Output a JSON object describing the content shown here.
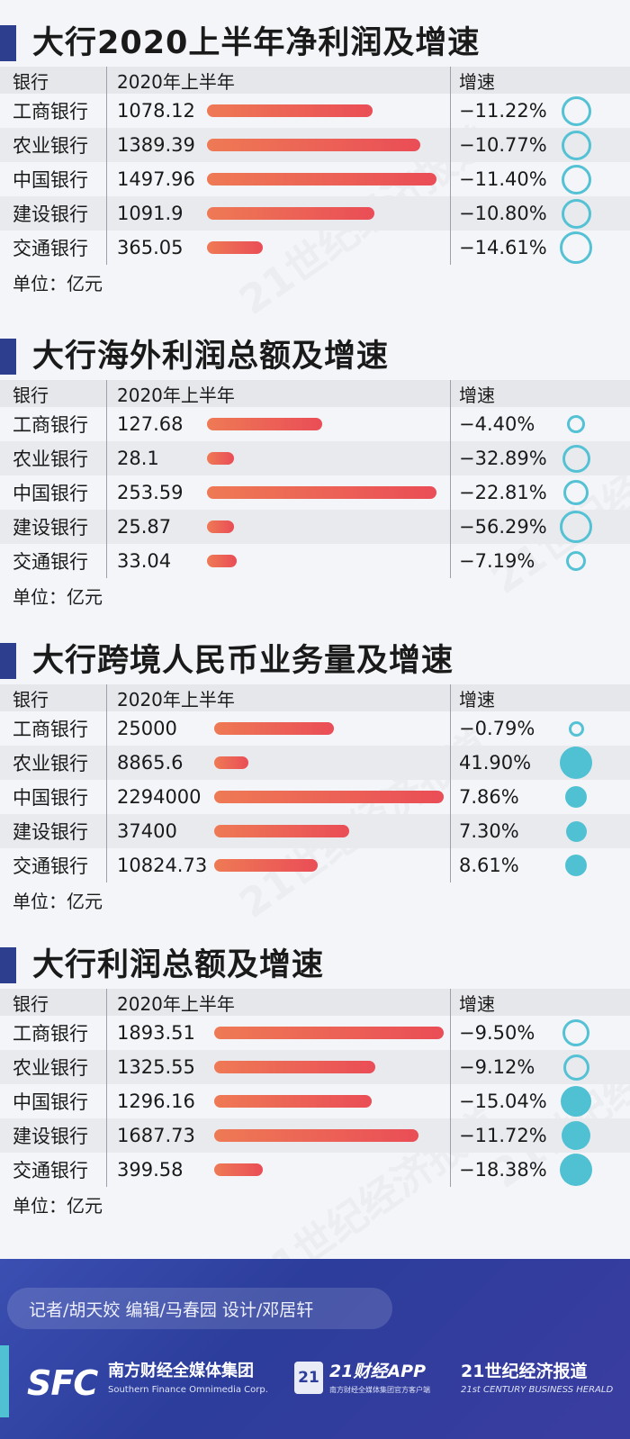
{
  "chart_data": [
    {
      "type": "table",
      "title": "大行2020上半年净利润及增速",
      "headers": [
        "银行",
        "2020年上半年",
        "增速"
      ],
      "categories": [
        "工商银行",
        "农业银行",
        "中国银行",
        "建设银行",
        "交通银行"
      ],
      "values": [
        1078.12,
        1389.39,
        1497.96,
        1091.9,
        365.05
      ],
      "value_labels": [
        "1078.12",
        "1389.39",
        "1497.96",
        "1091.9",
        "365.05"
      ],
      "growth": [
        -11.22,
        -10.77,
        -11.4,
        -10.8,
        -14.61
      ],
      "growth_labels": [
        "−11.22%",
        "−10.77%",
        "−11.40%",
        "−10.80%",
        "−14.61%"
      ],
      "unit": "单位：亿元"
    },
    {
      "type": "table",
      "title": "大行海外利润总额及增速",
      "headers": [
        "银行",
        "2020年上半年",
        "增速"
      ],
      "categories": [
        "工商银行",
        "农业银行",
        "中国银行",
        "建设银行",
        "交通银行"
      ],
      "values": [
        127.68,
        28.1,
        253.59,
        25.87,
        33.04
      ],
      "value_labels": [
        "127.68",
        "28.1",
        "253.59",
        "25.87",
        "33.04"
      ],
      "growth": [
        -4.4,
        -32.89,
        -22.81,
        -56.29,
        -7.19
      ],
      "growth_labels": [
        "−4.40%",
        "−32.89%",
        "−22.81%",
        "−56.29%",
        "−7.19%"
      ],
      "unit": "单位：亿元"
    },
    {
      "type": "table",
      "title": "大行跨境人民币业务量及增速",
      "headers": [
        "银行",
        "2020年上半年",
        "增速"
      ],
      "categories": [
        "工商银行",
        "农业银行",
        "中国银行",
        "建设银行",
        "交通银行"
      ],
      "values": [
        25000,
        8865.6,
        2294000,
        37400,
        10824.73
      ],
      "value_labels": [
        "25000",
        "8865.6",
        "2294000",
        "37400",
        "10824.73"
      ],
      "bar_levels": [
        0.52,
        0.15,
        1.0,
        0.59,
        0.45
      ],
      "growth": [
        -0.79,
        41.9,
        7.86,
        7.3,
        8.61
      ],
      "growth_labels": [
        "−0.79%",
        "41.90%",
        "7.86%",
        "7.30%",
        "8.61%"
      ],
      "unit": "单位：亿元"
    },
    {
      "type": "table",
      "title": "大行利润总额及增速",
      "headers": [
        "银行",
        "2020年上半年",
        "增速"
      ],
      "categories": [
        "工商银行",
        "农业银行",
        "中国银行",
        "建设银行",
        "交通银行"
      ],
      "values": [
        1893.51,
        1325.55,
        1296.16,
        1687.73,
        399.58
      ],
      "value_labels": [
        "1893.51",
        "1325.55",
        "1296.16",
        "1687.73",
        "399.58"
      ],
      "growth": [
        -9.5,
        -9.12,
        -15.04,
        -11.72,
        -18.38
      ],
      "growth_labels": [
        "−9.50%",
        "−9.12%",
        "−15.04%",
        "−11.72%",
        "−18.38%"
      ],
      "unit": "单位：亿元"
    }
  ],
  "colors": {
    "bar_start": "#ee7a55",
    "bar_end": "#ea4d56",
    "bubble": "#4fc1d3",
    "marker": "#2d3e8f",
    "footer": "#2f3f9e"
  },
  "footer": {
    "credits": "记者/胡天姣  编辑/马春园  设计/邓居轩",
    "sfc_logo": "SFC",
    "sfc_cn": "南方财经全媒体集团",
    "sfc_en": "Southern Finance Omnimedia Corp.",
    "app_badge": "21",
    "app_name": "21财经APP",
    "app_sub": "南方财经全媒体集团官方客户端",
    "herald_cn": "21世纪经济报道",
    "herald_en": "21st CENTURY BUSINESS HERALD"
  },
  "watermark": "21世纪经济报道"
}
